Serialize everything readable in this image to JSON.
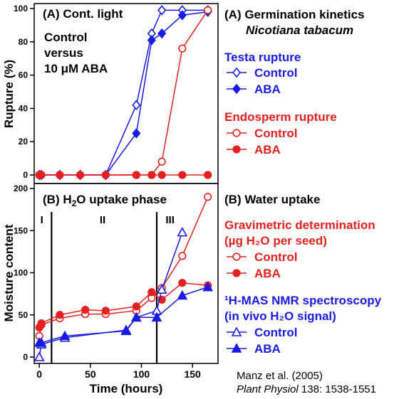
{
  "colors": {
    "testa": "#1a1ae6",
    "endo": "#e62020",
    "axis": "#000000",
    "nmr": "#1a1ae6",
    "grav": "#e62020"
  },
  "chart_data": [
    {
      "type": "line",
      "panel_label": "(A) Cont. light",
      "annotation": [
        "Control",
        "versus",
        "10 μM ABA"
      ],
      "xlabel": "",
      "ylabel": "Rupture (%)",
      "xlim": [
        -5,
        175
      ],
      "ylim": [
        0,
        100
      ],
      "yticks": [
        "0",
        "20",
        "40",
        "60",
        "80",
        "100"
      ],
      "series": [
        {
          "name": "Testa rupture Control",
          "color": "#1a1ae6",
          "marker": "diamond-open",
          "x": [
            0,
            2,
            20,
            40,
            65,
            95,
            110,
            120,
            140,
            165
          ],
          "y": [
            0,
            0,
            0,
            0,
            0,
            42,
            85,
            99,
            99,
            99
          ]
        },
        {
          "name": "Testa rupture ABA",
          "color": "#1a1ae6",
          "marker": "diamond-filled",
          "x": [
            0,
            2,
            20,
            40,
            65,
            95,
            110,
            120,
            140,
            165
          ],
          "y": [
            0,
            0,
            0,
            0,
            0,
            25,
            81,
            85,
            96,
            98
          ]
        },
        {
          "name": "Endosperm rupture Control",
          "color": "#e62020",
          "marker": "circle-open",
          "x": [
            0,
            2,
            20,
            40,
            65,
            95,
            110,
            120,
            140,
            165
          ],
          "y": [
            0,
            0,
            0,
            0,
            0,
            0,
            0,
            8,
            76,
            99
          ]
        },
        {
          "name": "Endosperm rupture ABA",
          "color": "#e62020",
          "marker": "circle-filled",
          "x": [
            0,
            2,
            20,
            40,
            65,
            95,
            110,
            120,
            140,
            165
          ],
          "y": [
            0,
            0,
            0,
            0,
            0,
            0,
            0,
            0,
            0,
            0
          ]
        }
      ]
    },
    {
      "type": "line",
      "panel_label": "(B) H2O uptake phase",
      "phases": [
        "I",
        "II",
        "III"
      ],
      "phase_boundaries": [
        12,
        115
      ],
      "xlabel": "Time (hours)",
      "ylabel": "Moisture content",
      "xlim": [
        -5,
        175
      ],
      "ylim": [
        0,
        200
      ],
      "xticks": [
        "0",
        "50",
        "100",
        "150"
      ],
      "yticks": [
        "0",
        "50",
        "100",
        "150",
        "200"
      ],
      "series": [
        {
          "name": "Gravimetric Control",
          "color": "#e62020",
          "marker": "circle-open",
          "x": [
            0,
            2,
            20,
            45,
            65,
            95,
            110,
            120,
            140,
            165
          ],
          "y": [
            25,
            38,
            46,
            51,
            51,
            55,
            70,
            82,
            120,
            190
          ]
        },
        {
          "name": "Gravimetric ABA",
          "color": "#e62020",
          "marker": "circle-filled",
          "x": [
            0,
            2,
            20,
            45,
            65,
            95,
            110,
            120,
            140,
            165
          ],
          "y": [
            35,
            40,
            50,
            56,
            55,
            60,
            77,
            68,
            88,
            85
          ]
        },
        {
          "name": "NMR Control",
          "color": "#1a1ae6",
          "marker": "triangle-open",
          "x": [
            0,
            2,
            25,
            85,
            95,
            115,
            120,
            140
          ],
          "y": [
            0,
            15,
            23,
            32,
            47,
            55,
            80,
            148
          ]
        },
        {
          "name": "NMR ABA",
          "color": "#1a1ae6",
          "marker": "triangle-filled",
          "x": [
            0,
            2,
            25,
            85,
            95,
            115,
            140,
            165
          ],
          "y": [
            17,
            17,
            25,
            31,
            47,
            47,
            73,
            83
          ]
        }
      ]
    }
  ],
  "legend": {
    "a_title": "(A) Germination kinetics",
    "a_species": "Nicotiana tabacum",
    "testa_head": "Testa rupture",
    "endo_head": "Endosperm rupture",
    "b_title": "(B) Water uptake",
    "grav_head1": "Gravimetric determination",
    "grav_head2": "(µg H₂O per seed)",
    "nmr_head1": "¹H-MAS NMR spectroscopy",
    "nmr_head2": "(in vivo H₂O signal)",
    "control": "Control",
    "aba": "ABA"
  },
  "citation": {
    "line1": "Manz et al. (2005)",
    "journal": "Plant Physiol",
    "rest": " 138: 1538-1551"
  }
}
